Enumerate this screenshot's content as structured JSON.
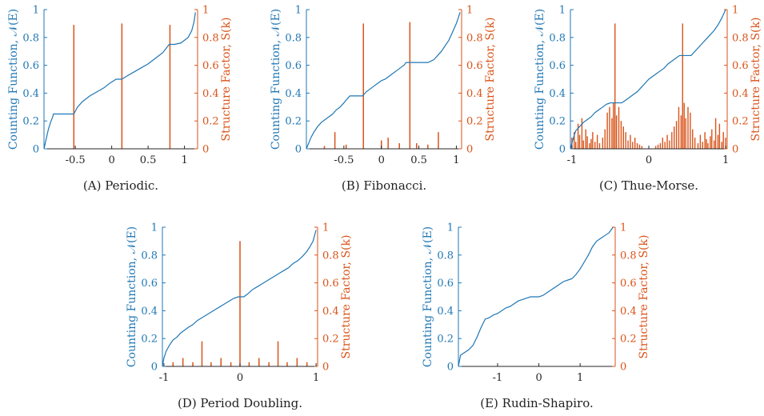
{
  "colors": {
    "counting": "#1f77b4",
    "structure": "#d95319",
    "axis": "#262626"
  },
  "chart_data": [
    {
      "type": "line+bar",
      "caption": "(A) Periodic.",
      "ylabel_left": "Counting Function, 𝒩(E)",
      "ylabel_right": "Structure Factor, S(k)",
      "xlim": [
        -0.93,
        1.18
      ],
      "ylim_left": [
        0,
        1
      ],
      "ylim_right": [
        0,
        1
      ],
      "xticks": [
        -0.5,
        0,
        0.5,
        1
      ],
      "xtick_labels": [
        "-0.5",
        "0",
        "0.5",
        "1"
      ],
      "yticks_left": [
        0,
        0.2,
        0.4,
        0.6,
        0.8,
        1
      ],
      "yticks_left_labels": [
        "0",
        "0.2",
        "0.4",
        "0.6",
        "0.8",
        "1"
      ],
      "yticks_right": [
        0,
        0.2,
        0.4,
        0.6,
        0.8,
        1
      ],
      "yticks_right_labels": [
        "0",
        "0.2",
        "0.4",
        "0.6",
        "0.8",
        "1"
      ],
      "counting_function": {
        "x": [
          -0.93,
          -0.9,
          -0.87,
          -0.84,
          -0.81,
          -0.8,
          -0.52,
          -0.5,
          -0.47,
          -0.4,
          -0.3,
          -0.2,
          -0.1,
          -0.03,
          0.03,
          0.06,
          0.14,
          0.2,
          0.3,
          0.4,
          0.5,
          0.6,
          0.7,
          0.76,
          0.79,
          0.82,
          0.86,
          0.95,
          1.05,
          1.1,
          1.13,
          1.15
        ],
        "y": [
          0.0,
          0.07,
          0.14,
          0.19,
          0.23,
          0.25,
          0.25,
          0.27,
          0.3,
          0.34,
          0.38,
          0.41,
          0.44,
          0.47,
          0.49,
          0.5,
          0.5,
          0.52,
          0.55,
          0.58,
          0.61,
          0.65,
          0.69,
          0.73,
          0.75,
          0.75,
          0.75,
          0.76,
          0.8,
          0.85,
          0.91,
          0.98
        ]
      },
      "structure_factor": {
        "k": [
          -0.52,
          0.14,
          0.8
        ],
        "s": [
          0.89,
          0.9,
          0.89
        ]
      }
    },
    {
      "type": "line+bar",
      "caption": "(B) Fibonacci.",
      "ylabel_left": "Counting Function, 𝒩(E)",
      "ylabel_right": "Structure Factor, S(k)",
      "xlim": [
        -1.0,
        1.07
      ],
      "ylim_left": [
        0,
        1
      ],
      "ylim_right": [
        0,
        1
      ],
      "xticks": [
        -0.5,
        0,
        0.5,
        1
      ],
      "xtick_labels": [
        "-0.5",
        "0",
        "0.5",
        "1"
      ],
      "yticks_left": [
        0,
        0.2,
        0.4,
        0.6,
        0.8,
        1
      ],
      "yticks_left_labels": [
        "0",
        "0.2",
        "0.4",
        "0.6",
        "0.8",
        "1"
      ],
      "yticks_right": [
        0,
        0.2,
        0.4,
        0.6,
        0.8,
        1
      ],
      "yticks_right_labels": [
        "0",
        "0.2",
        "0.4",
        "0.6",
        "0.8",
        "1"
      ],
      "counting_function": {
        "x": [
          -1.0,
          -0.97,
          -0.94,
          -0.9,
          -0.85,
          -0.8,
          -0.75,
          -0.7,
          -0.65,
          -0.6,
          -0.55,
          -0.5,
          -0.47,
          -0.42,
          -0.25,
          -0.2,
          -0.15,
          -0.1,
          -0.05,
          0.0,
          0.05,
          0.1,
          0.15,
          0.2,
          0.25,
          0.3,
          0.33,
          0.4,
          0.62,
          0.7,
          0.8,
          0.9,
          0.95,
          1.0,
          1.05
        ],
        "y": [
          0.0,
          0.04,
          0.08,
          0.12,
          0.16,
          0.19,
          0.21,
          0.23,
          0.25,
          0.28,
          0.3,
          0.33,
          0.35,
          0.38,
          0.38,
          0.41,
          0.43,
          0.45,
          0.47,
          0.49,
          0.5,
          0.52,
          0.54,
          0.56,
          0.58,
          0.6,
          0.62,
          0.62,
          0.62,
          0.64,
          0.7,
          0.78,
          0.84,
          0.9,
          0.98
        ]
      },
      "structure_factor": {
        "k": [
          -0.62,
          -0.24,
          0.0,
          0.09,
          0.24,
          0.38,
          0.47,
          0.62,
          0.76,
          -0.76,
          -0.47,
          0.0
        ],
        "s": [
          0.12,
          0.9,
          0.06,
          0.08,
          0.04,
          0.91,
          0.04,
          0.03,
          0.12,
          0.02,
          0.03,
          0.06
        ]
      }
    },
    {
      "type": "line+bar",
      "caption": "(C) Thue-Morse.",
      "ylabel_left": "Counting Function, 𝒩(E)",
      "ylabel_right": "Structure Factor, S(k)",
      "xlim": [
        -1.02,
        1.02
      ],
      "ylim_left": [
        0,
        1
      ],
      "ylim_right": [
        0,
        1
      ],
      "xticks": [
        -1,
        0,
        1
      ],
      "xtick_labels": [
        "-1",
        "0",
        "1"
      ],
      "yticks_left": [
        0,
        0.2,
        0.4,
        0.6,
        0.8,
        1
      ],
      "yticks_left_labels": [
        "0",
        "0.2",
        "0.4",
        "0.6",
        "0.8",
        "1"
      ],
      "yticks_right": [
        0,
        0.2,
        0.4,
        0.6,
        0.8,
        1
      ],
      "yticks_right_labels": [
        "0",
        "0.2",
        "0.4",
        "0.6",
        "0.8",
        "1"
      ],
      "counting_function": {
        "x": [
          -1.02,
          -0.98,
          -0.95,
          -0.9,
          -0.85,
          -0.8,
          -0.75,
          -0.7,
          -0.65,
          -0.6,
          -0.55,
          -0.5,
          -0.45,
          -0.35,
          -0.3,
          -0.25,
          -0.2,
          -0.15,
          -0.1,
          -0.05,
          0.0,
          0.05,
          0.1,
          0.15,
          0.2,
          0.25,
          0.3,
          0.35,
          0.4,
          0.47,
          0.55,
          0.6,
          0.65,
          0.7,
          0.75,
          0.8,
          0.85,
          0.9,
          0.95,
          1.0
        ],
        "y": [
          0.0,
          0.08,
          0.13,
          0.16,
          0.19,
          0.21,
          0.23,
          0.26,
          0.28,
          0.3,
          0.32,
          0.33,
          0.33,
          0.33,
          0.35,
          0.37,
          0.39,
          0.41,
          0.44,
          0.47,
          0.5,
          0.52,
          0.54,
          0.56,
          0.58,
          0.61,
          0.63,
          0.65,
          0.67,
          0.67,
          0.67,
          0.7,
          0.73,
          0.76,
          0.79,
          0.82,
          0.85,
          0.89,
          0.94,
          1.0
        ]
      },
      "structure_factor": {
        "k": [
          -0.44,
          0.44,
          -1.0,
          -0.97,
          -0.95,
          -0.92,
          -0.9,
          -0.87,
          -0.85,
          -0.82,
          -0.8,
          -0.77,
          -0.75,
          -0.73,
          -0.7,
          -0.67,
          -0.64,
          -0.6,
          -0.57,
          -0.54,
          -0.51,
          -0.48,
          -0.46,
          -0.42,
          -0.39,
          -0.36,
          -0.33,
          -0.3,
          -0.27,
          -0.24,
          -0.21,
          -0.18,
          -0.15,
          -0.12,
          -0.09,
          0.09,
          0.12,
          0.15,
          0.18,
          0.21,
          0.24,
          0.27,
          0.3,
          0.33,
          0.36,
          0.39,
          0.42,
          0.46,
          0.48,
          0.51,
          0.54,
          0.57,
          0.6,
          0.64,
          0.67,
          0.7,
          0.73,
          0.75,
          0.77,
          0.8,
          0.82,
          0.85,
          0.87,
          0.9,
          0.92,
          0.95,
          0.97,
          1.0
        ],
        "s": [
          0.9,
          0.9,
          0.08,
          0.12,
          0.05,
          0.18,
          0.1,
          0.22,
          0.06,
          0.14,
          0.09,
          0.04,
          0.07,
          0.12,
          0.05,
          0.1,
          0.04,
          0.08,
          0.14,
          0.26,
          0.3,
          0.22,
          0.33,
          0.24,
          0.3,
          0.2,
          0.16,
          0.12,
          0.06,
          0.1,
          0.05,
          0.08,
          0.04,
          0.03,
          0.02,
          0.02,
          0.03,
          0.04,
          0.08,
          0.05,
          0.1,
          0.06,
          0.12,
          0.16,
          0.2,
          0.3,
          0.24,
          0.33,
          0.22,
          0.3,
          0.26,
          0.14,
          0.08,
          0.04,
          0.1,
          0.05,
          0.12,
          0.07,
          0.04,
          0.09,
          0.14,
          0.06,
          0.22,
          0.1,
          0.18,
          0.05,
          0.12,
          0.08
        ]
      }
    },
    {
      "type": "line+bar",
      "caption": "(D) Period Doubling.",
      "ylabel_left": "Counting Function, 𝒩(E)",
      "ylabel_right": "Structure Factor, S(k)",
      "xlim": [
        -1.02,
        1.02
      ],
      "ylim_left": [
        0,
        1
      ],
      "ylim_right": [
        0,
        1
      ],
      "xticks": [
        -1,
        0,
        1
      ],
      "xtick_labels": [
        "-1",
        "0",
        "1"
      ],
      "yticks_left": [
        0,
        0.2,
        0.4,
        0.6,
        0.8,
        1
      ],
      "yticks_left_labels": [
        "0",
        "0.2",
        "0.4",
        "0.6",
        "0.8",
        "1"
      ],
      "yticks_right": [
        0,
        0.2,
        0.4,
        0.6,
        0.8,
        1
      ],
      "yticks_right_labels": [
        "0",
        "0.2",
        "0.4",
        "0.6",
        "0.8",
        "1"
      ],
      "counting_function": {
        "x": [
          -1.02,
          -1.0,
          -0.97,
          -0.93,
          -0.88,
          -0.83,
          -0.78,
          -0.73,
          -0.68,
          -0.62,
          -0.56,
          -0.5,
          -0.44,
          -0.38,
          -0.32,
          -0.26,
          -0.2,
          -0.14,
          -0.08,
          -0.02,
          0.0,
          0.05,
          0.1,
          0.16,
          0.22,
          0.28,
          0.34,
          0.4,
          0.46,
          0.52,
          0.58,
          0.64,
          0.7,
          0.76,
          0.82,
          0.87,
          0.92,
          0.96,
          1.0
        ],
        "y": [
          0.0,
          0.06,
          0.11,
          0.15,
          0.19,
          0.21,
          0.24,
          0.26,
          0.28,
          0.3,
          0.33,
          0.35,
          0.37,
          0.39,
          0.41,
          0.43,
          0.45,
          0.47,
          0.49,
          0.5,
          0.5,
          0.5,
          0.52,
          0.55,
          0.57,
          0.59,
          0.61,
          0.63,
          0.65,
          0.67,
          0.69,
          0.71,
          0.74,
          0.76,
          0.79,
          0.82,
          0.86,
          0.9,
          0.98
        ]
      },
      "structure_factor": {
        "k": [
          0.0,
          -0.5,
          0.5,
          -0.75,
          -0.25,
          0.25,
          0.75,
          -0.88,
          -0.62,
          -0.38,
          -0.12,
          0.12,
          0.38,
          0.62,
          0.88
        ],
        "s": [
          0.9,
          0.18,
          0.18,
          0.06,
          0.06,
          0.06,
          0.06,
          0.03,
          0.03,
          0.03,
          0.03,
          0.03,
          0.03,
          0.03,
          0.03
        ]
      }
    },
    {
      "type": "line+bar",
      "caption": "(E) Rudin-Shapiro.",
      "ylabel_left": "Counting Function, 𝒩(E)",
      "ylabel_right": "Structure Factor, S(k)",
      "xlim": [
        -1.95,
        1.85
      ],
      "ylim_left": [
        0,
        1
      ],
      "ylim_right": [
        0,
        1
      ],
      "xticks": [
        -1,
        0,
        1
      ],
      "xtick_labels": [
        "-1",
        "0",
        "1"
      ],
      "yticks_left": [
        0,
        0.2,
        0.4,
        0.6,
        0.8,
        1
      ],
      "yticks_left_labels": [
        "0",
        "0.2",
        "0.4",
        "0.6",
        "0.8",
        "1"
      ],
      "yticks_right": [
        0,
        0.2,
        0.4,
        0.6,
        0.8,
        1
      ],
      "yticks_right_labels": [
        "0",
        "0.2",
        "0.4",
        "0.6",
        "0.8",
        "1"
      ],
      "counting_function": {
        "x": [
          -1.95,
          -1.9,
          -1.8,
          -1.7,
          -1.6,
          -1.5,
          -1.4,
          -1.3,
          -1.2,
          -1.1,
          -1.0,
          -0.9,
          -0.8,
          -0.7,
          -0.6,
          -0.5,
          -0.4,
          -0.3,
          -0.2,
          -0.1,
          0.0,
          0.1,
          0.2,
          0.3,
          0.4,
          0.5,
          0.6,
          0.7,
          0.8,
          0.9,
          1.0,
          1.1,
          1.2,
          1.3,
          1.4,
          1.5,
          1.6,
          1.7,
          1.8
        ],
        "y": [
          0.0,
          0.08,
          0.1,
          0.12,
          0.15,
          0.21,
          0.28,
          0.34,
          0.35,
          0.37,
          0.38,
          0.4,
          0.42,
          0.43,
          0.45,
          0.47,
          0.48,
          0.49,
          0.5,
          0.5,
          0.5,
          0.51,
          0.53,
          0.55,
          0.57,
          0.59,
          0.61,
          0.62,
          0.63,
          0.66,
          0.7,
          0.75,
          0.8,
          0.86,
          0.9,
          0.92,
          0.94,
          0.96,
          1.0
        ]
      },
      "structure_factor": {
        "k": [],
        "s": []
      }
    }
  ]
}
